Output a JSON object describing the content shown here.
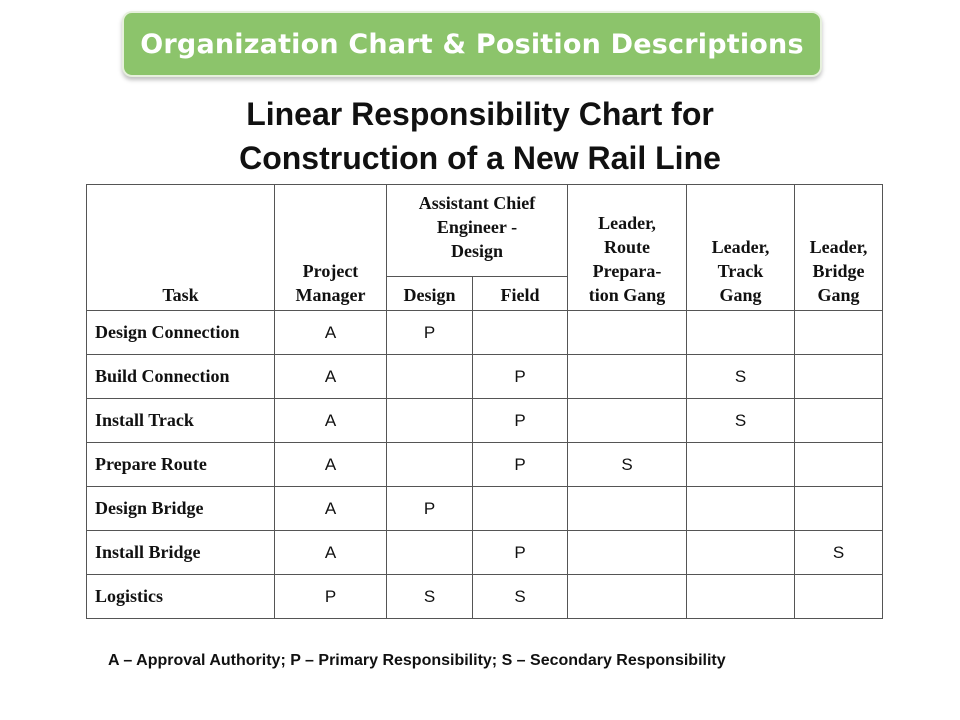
{
  "banner": {
    "title": "Organization Chart & Position Descriptions"
  },
  "chart": {
    "title_line1": "Linear Responsibility Chart for",
    "title_line2": "Construction of a New Rail Line"
  },
  "table": {
    "headers": {
      "task": "Task",
      "project_manager_l1": "Project",
      "project_manager_l2": "Manager",
      "ace_l1": "Assistant Chief",
      "ace_l2": "Engineer -",
      "ace_l3": "Design",
      "ace_design": "Design",
      "ace_field": "Field",
      "route_l1": "Leader,",
      "route_l2": "Route",
      "route_l3": "Prepara-",
      "route_l4": "tion Gang",
      "track_l1": "Leader,",
      "track_l2": "Track",
      "track_l3": "Gang",
      "bridge_l1": "Leader,",
      "bridge_l2": "Bridge",
      "bridge_l3": "Gang"
    },
    "rows": [
      {
        "task": "Design Connection",
        "pm": "A",
        "design": "P",
        "field": "",
        "route": "",
        "track": "",
        "bridge": ""
      },
      {
        "task": "Build Connection",
        "pm": "A",
        "design": "",
        "field": "P",
        "route": "",
        "track": "S",
        "bridge": ""
      },
      {
        "task": "Install Track",
        "pm": "A",
        "design": "",
        "field": "P",
        "route": "",
        "track": "S",
        "bridge": ""
      },
      {
        "task": "Prepare Route",
        "pm": "A",
        "design": "",
        "field": "P",
        "route": "S",
        "track": "",
        "bridge": ""
      },
      {
        "task": "Design Bridge",
        "pm": "A",
        "design": "P",
        "field": "",
        "route": "",
        "track": "",
        "bridge": ""
      },
      {
        "task": "Install Bridge",
        "pm": "A",
        "design": "",
        "field": "P",
        "route": "",
        "track": "",
        "bridge": "S"
      },
      {
        "task": "Logistics",
        "pm": "P",
        "design": "S",
        "field": "S",
        "route": "",
        "track": "",
        "bridge": ""
      }
    ]
  },
  "legend": "A – Approval Authority; P – Primary Responsibility; S – Secondary Responsibility"
}
